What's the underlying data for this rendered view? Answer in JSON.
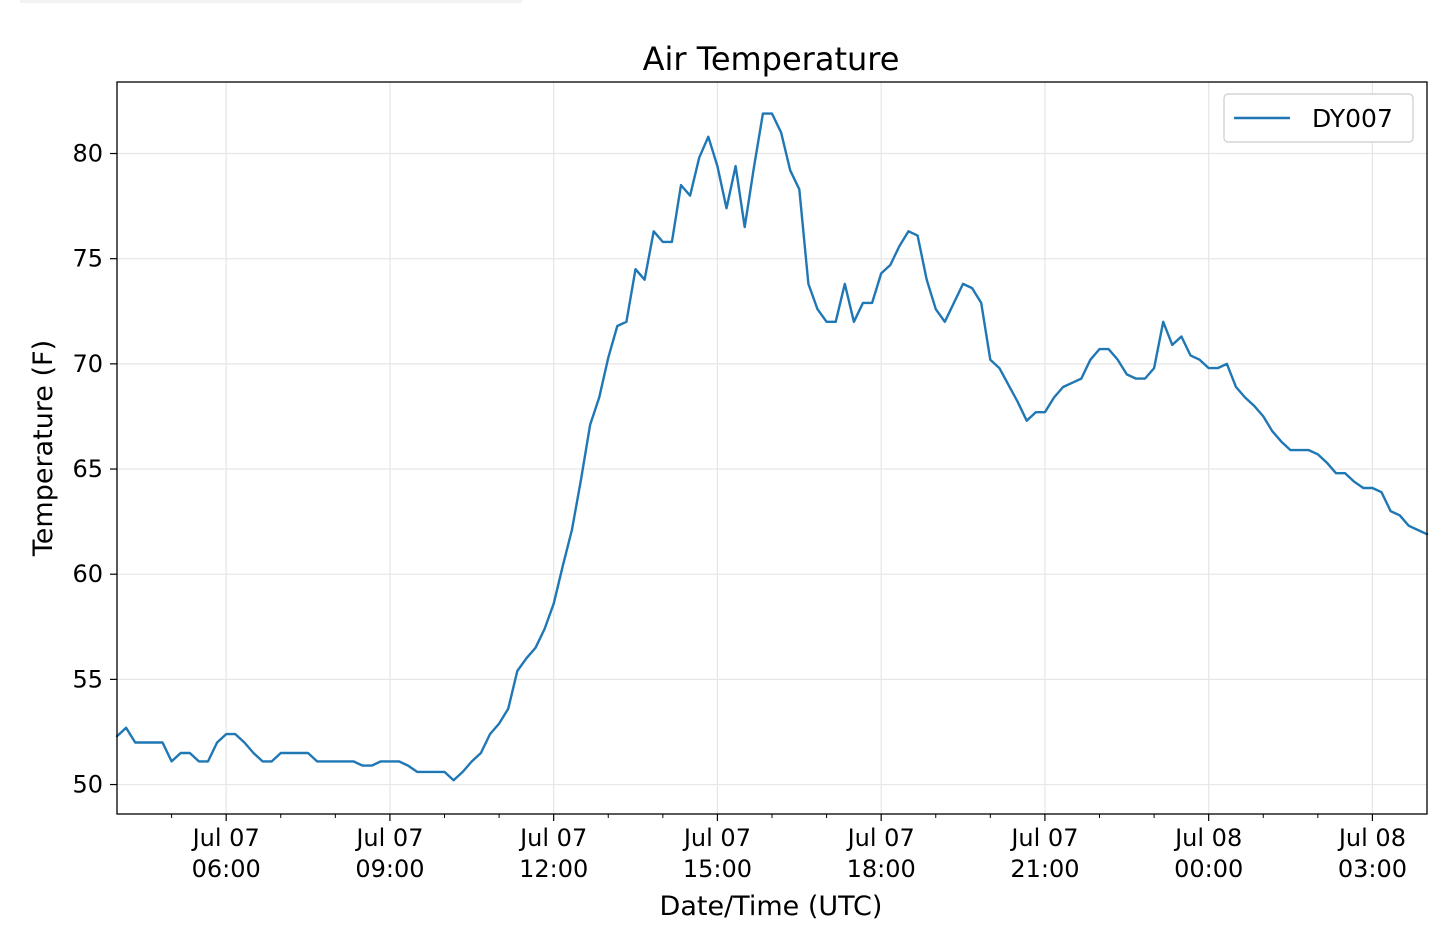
{
  "chart_data": {
    "type": "line",
    "title": "Air Temperature",
    "xlabel": "Date/Time (UTC)",
    "ylabel": "Temperature (F)",
    "ylim": [
      48.6,
      83.4
    ],
    "xlim": [
      "2019-07-07 04:00",
      "2019-07-08 04:00"
    ],
    "grid": true,
    "legend_position": "top-right",
    "y_ticks": [
      {
        "value": 50,
        "label": "50"
      },
      {
        "value": 55,
        "label": "55"
      },
      {
        "value": 60,
        "label": "60"
      },
      {
        "value": 65,
        "label": "65"
      },
      {
        "value": 70,
        "label": "70"
      },
      {
        "value": 75,
        "label": "75"
      },
      {
        "value": 80,
        "label": "80"
      }
    ],
    "x_ticks": [
      {
        "time": "2019-07-07 06:00",
        "line1": "Jul 07",
        "line2": "06:00"
      },
      {
        "time": "2019-07-07 09:00",
        "line1": "Jul 07",
        "line2": "09:00"
      },
      {
        "time": "2019-07-07 12:00",
        "line1": "Jul 07",
        "line2": "12:00"
      },
      {
        "time": "2019-07-07 15:00",
        "line1": "Jul 07",
        "line2": "15:00"
      },
      {
        "time": "2019-07-07 18:00",
        "line1": "Jul 07",
        "line2": "18:00"
      },
      {
        "time": "2019-07-07 21:00",
        "line1": "Jul 07",
        "line2": "21:00"
      },
      {
        "time": "2019-07-08 00:00",
        "line1": "Jul 08",
        "line2": "00:00"
      },
      {
        "time": "2019-07-08 03:00",
        "line1": "Jul 08",
        "line2": "03:00"
      }
    ],
    "x_minor_ticks": [
      "2019-07-07 05:00",
      "2019-07-07 07:00",
      "2019-07-07 08:00",
      "2019-07-07 10:00",
      "2019-07-07 11:00",
      "2019-07-07 13:00",
      "2019-07-07 14:00",
      "2019-07-07 16:00",
      "2019-07-07 17:00",
      "2019-07-07 19:00",
      "2019-07-07 20:00",
      "2019-07-07 22:00",
      "2019-07-07 23:00",
      "2019-07-08 01:00",
      "2019-07-08 02:00"
    ],
    "series": [
      {
        "name": "DY007",
        "color": "#1f77b4",
        "x": [
          "2019-07-07 04:00",
          "2019-07-07 04:10",
          "2019-07-07 04:20",
          "2019-07-07 04:30",
          "2019-07-07 04:40",
          "2019-07-07 04:50",
          "2019-07-07 05:00",
          "2019-07-07 05:10",
          "2019-07-07 05:20",
          "2019-07-07 05:30",
          "2019-07-07 05:40",
          "2019-07-07 05:50",
          "2019-07-07 06:00",
          "2019-07-07 06:10",
          "2019-07-07 06:20",
          "2019-07-07 06:30",
          "2019-07-07 06:40",
          "2019-07-07 06:50",
          "2019-07-07 07:00",
          "2019-07-07 07:10",
          "2019-07-07 07:20",
          "2019-07-07 07:30",
          "2019-07-07 07:40",
          "2019-07-07 07:50",
          "2019-07-07 08:00",
          "2019-07-07 08:10",
          "2019-07-07 08:20",
          "2019-07-07 08:30",
          "2019-07-07 08:40",
          "2019-07-07 08:50",
          "2019-07-07 09:00",
          "2019-07-07 09:10",
          "2019-07-07 09:20",
          "2019-07-07 09:30",
          "2019-07-07 09:40",
          "2019-07-07 09:50",
          "2019-07-07 10:00",
          "2019-07-07 10:10",
          "2019-07-07 10:20",
          "2019-07-07 10:30",
          "2019-07-07 10:40",
          "2019-07-07 10:50",
          "2019-07-07 11:00",
          "2019-07-07 11:10",
          "2019-07-07 11:20",
          "2019-07-07 11:30",
          "2019-07-07 11:40",
          "2019-07-07 11:50",
          "2019-07-07 12:00",
          "2019-07-07 12:10",
          "2019-07-07 12:20",
          "2019-07-07 12:30",
          "2019-07-07 12:40",
          "2019-07-07 12:50",
          "2019-07-07 13:00",
          "2019-07-07 13:10",
          "2019-07-07 13:20",
          "2019-07-07 13:30",
          "2019-07-07 13:40",
          "2019-07-07 13:50",
          "2019-07-07 14:00",
          "2019-07-07 14:10",
          "2019-07-07 14:20",
          "2019-07-07 14:30",
          "2019-07-07 14:40",
          "2019-07-07 14:50",
          "2019-07-07 15:00",
          "2019-07-07 15:10",
          "2019-07-07 15:20",
          "2019-07-07 15:30",
          "2019-07-07 15:40",
          "2019-07-07 15:50",
          "2019-07-07 16:00",
          "2019-07-07 16:10",
          "2019-07-07 16:20",
          "2019-07-07 16:30",
          "2019-07-07 16:40",
          "2019-07-07 16:50",
          "2019-07-07 17:00",
          "2019-07-07 17:10",
          "2019-07-07 17:20",
          "2019-07-07 17:30",
          "2019-07-07 17:40",
          "2019-07-07 17:50",
          "2019-07-07 18:00",
          "2019-07-07 18:10",
          "2019-07-07 18:20",
          "2019-07-07 18:30",
          "2019-07-07 18:40",
          "2019-07-07 18:50",
          "2019-07-07 19:00",
          "2019-07-07 19:10",
          "2019-07-07 19:20",
          "2019-07-07 19:30",
          "2019-07-07 19:40",
          "2019-07-07 19:50",
          "2019-07-07 20:00",
          "2019-07-07 20:10",
          "2019-07-07 20:20",
          "2019-07-07 20:30",
          "2019-07-07 20:40",
          "2019-07-07 20:50",
          "2019-07-07 21:00",
          "2019-07-07 21:10",
          "2019-07-07 21:20",
          "2019-07-07 21:30",
          "2019-07-07 21:40",
          "2019-07-07 21:50",
          "2019-07-07 22:00",
          "2019-07-07 22:10",
          "2019-07-07 22:20",
          "2019-07-07 22:30",
          "2019-07-07 22:40",
          "2019-07-07 22:50",
          "2019-07-07 23:00",
          "2019-07-07 23:10",
          "2019-07-07 23:20",
          "2019-07-07 23:30",
          "2019-07-07 23:40",
          "2019-07-07 23:50",
          "2019-07-08 00:00",
          "2019-07-08 00:10",
          "2019-07-08 00:20",
          "2019-07-08 00:30",
          "2019-07-08 00:40",
          "2019-07-08 00:50",
          "2019-07-08 01:00",
          "2019-07-08 01:10",
          "2019-07-08 01:20",
          "2019-07-08 01:30",
          "2019-07-08 01:40",
          "2019-07-08 01:50",
          "2019-07-08 02:00",
          "2019-07-08 02:10",
          "2019-07-08 02:20",
          "2019-07-08 02:30",
          "2019-07-08 02:40",
          "2019-07-08 02:50",
          "2019-07-08 03:00",
          "2019-07-08 03:10",
          "2019-07-08 03:20",
          "2019-07-08 03:30",
          "2019-07-08 03:40",
          "2019-07-08 03:50",
          "2019-07-08 04:00"
        ],
        "values": [
          52.3,
          52.7,
          52.0,
          52.0,
          52.0,
          52.0,
          51.1,
          51.5,
          51.5,
          51.1,
          51.1,
          52.0,
          52.4,
          52.4,
          52.0,
          51.5,
          51.1,
          51.1,
          51.5,
          51.5,
          51.5,
          51.5,
          51.1,
          51.1,
          51.1,
          51.1,
          51.1,
          50.9,
          50.9,
          51.1,
          51.1,
          51.1,
          50.9,
          50.6,
          50.6,
          50.6,
          50.6,
          50.2,
          50.6,
          51.1,
          51.5,
          52.4,
          52.9,
          53.6,
          55.4,
          56.0,
          56.5,
          57.4,
          58.6,
          60.4,
          62.1,
          64.5,
          67.1,
          68.4,
          70.3,
          71.8,
          72.0,
          74.5,
          74.0,
          76.3,
          75.8,
          75.8,
          78.5,
          78.0,
          79.8,
          80.8,
          79.4,
          77.4,
          79.4,
          76.5,
          79.3,
          81.9,
          81.9,
          81.0,
          79.2,
          78.3,
          73.8,
          72.6,
          72.0,
          72.0,
          73.8,
          72.0,
          72.9,
          72.9,
          74.3,
          74.7,
          75.6,
          76.3,
          76.1,
          74.0,
          72.6,
          72.0,
          72.9,
          73.8,
          73.6,
          72.9,
          70.2,
          69.8,
          69.0,
          68.2,
          67.3,
          67.7,
          67.7,
          68.4,
          68.9,
          69.1,
          69.3,
          70.2,
          70.7,
          70.7,
          70.2,
          69.5,
          69.3,
          69.3,
          69.8,
          72.0,
          70.9,
          71.3,
          70.4,
          70.2,
          69.8,
          69.8,
          70.0,
          68.9,
          68.4,
          68.0,
          67.5,
          66.8,
          66.3,
          65.9,
          65.9,
          65.9,
          65.7,
          65.3,
          64.8,
          64.8,
          64.4,
          64.1,
          64.1,
          63.9,
          63.0,
          62.8,
          62.3,
          62.1,
          61.9
        ]
      }
    ]
  }
}
